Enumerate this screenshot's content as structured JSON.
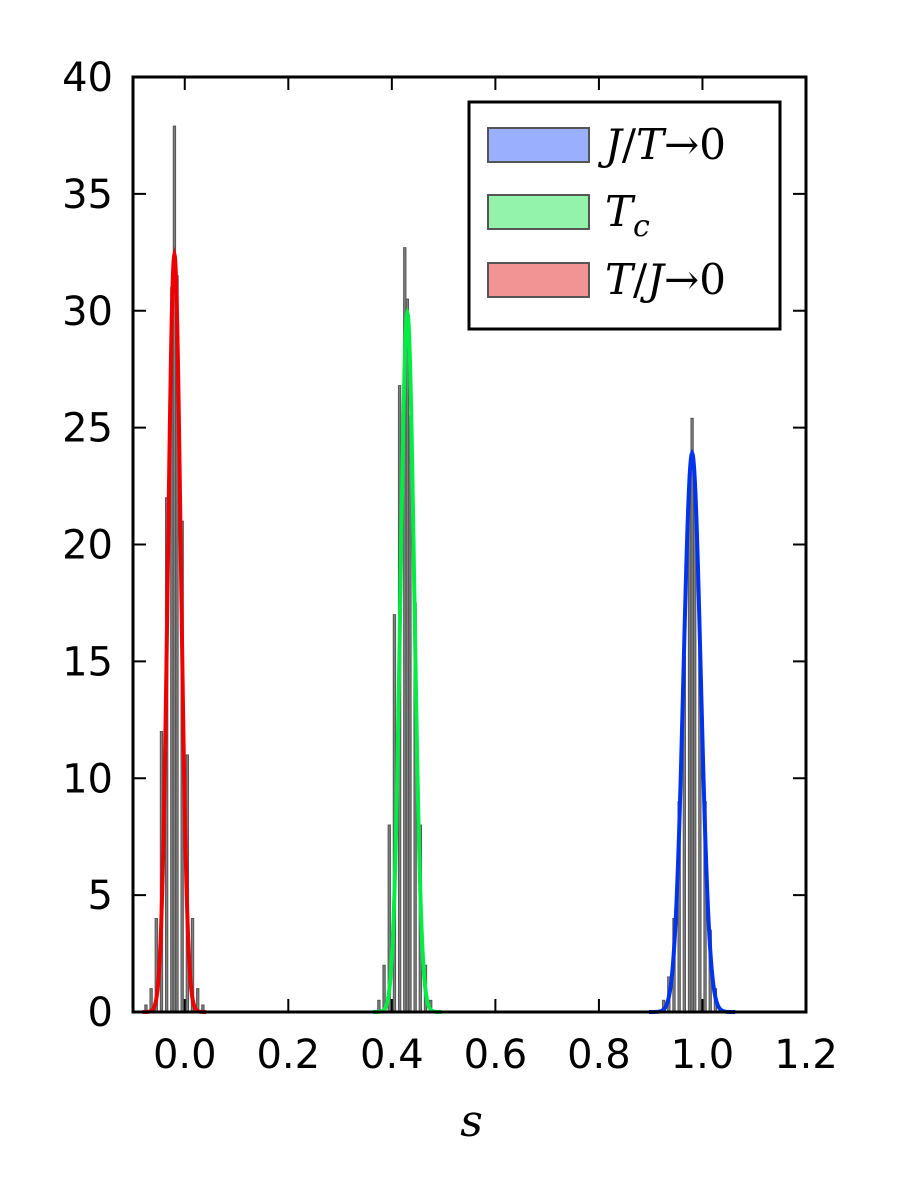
{
  "chart_data": {
    "type": "histogram",
    "xlabel": "s",
    "ylabel": "",
    "title": "",
    "xlim": [
      -0.1,
      1.2
    ],
    "ylim": [
      0,
      40
    ],
    "xticks": [
      "0.0",
      "0.2",
      "0.4",
      "0.6",
      "0.8",
      "1.0",
      "1.2"
    ],
    "xtick_values": [
      0.0,
      0.2,
      0.4,
      0.6,
      0.8,
      1.0,
      1.2
    ],
    "yticks": [
      "0",
      "5",
      "10",
      "15",
      "20",
      "25",
      "30",
      "35",
      "40"
    ],
    "ytick_values": [
      0,
      5,
      10,
      15,
      20,
      25,
      30,
      35,
      40
    ],
    "grid": false,
    "legend_position": "top-right",
    "series": [
      {
        "name": "J/T→0",
        "legend_parts": [
          "J",
          "/",
          "T",
          "→",
          "0"
        ],
        "fill_color": "#6f8fff",
        "line_color": "#0033ee",
        "fit_peak": 23.9,
        "fit_center": 0.98,
        "fit_sigma": 0.0167,
        "bins": [
          [
            0.925,
            0.5
          ],
          [
            0.935,
            1.5
          ],
          [
            0.945,
            4.0
          ],
          [
            0.955,
            9.0
          ],
          [
            0.965,
            16.0
          ],
          [
            0.975,
            23.0
          ],
          [
            0.98,
            25.4
          ],
          [
            0.985,
            22.0
          ],
          [
            0.995,
            15.5
          ],
          [
            1.005,
            9.0
          ],
          [
            1.015,
            3.5
          ],
          [
            1.025,
            1.0
          ]
        ]
      },
      {
        "name": "T_c",
        "legend_parts": [
          "T",
          "c"
        ],
        "fill_color": "#66ee88",
        "line_color": "#00ee44",
        "fit_peak": 29.9,
        "fit_center": 0.43,
        "fit_sigma": 0.0133,
        "bins": [
          [
            0.375,
            0.5
          ],
          [
            0.385,
            2.0
          ],
          [
            0.395,
            8.0
          ],
          [
            0.405,
            17.0
          ],
          [
            0.415,
            26.8
          ],
          [
            0.425,
            32.7
          ],
          [
            0.43,
            30.5
          ],
          [
            0.435,
            25.5
          ],
          [
            0.445,
            17.5
          ],
          [
            0.455,
            8.0
          ],
          [
            0.465,
            2.0
          ],
          [
            0.475,
            0.5
          ]
        ]
      },
      {
        "name": "T/J→0",
        "legend_parts": [
          "T",
          "/",
          "J",
          "→",
          "0"
        ],
        "fill_color": "#ee6666",
        "line_color": "#ee0000",
        "fit_peak": 32.4,
        "fit_center": -0.02,
        "fit_sigma": 0.0123,
        "bins": [
          [
            -0.075,
            0.3
          ],
          [
            -0.065,
            1.0
          ],
          [
            -0.055,
            4.0
          ],
          [
            -0.045,
            12.0
          ],
          [
            -0.035,
            22.0
          ],
          [
            -0.025,
            31.0
          ],
          [
            -0.02,
            37.9
          ],
          [
            -0.015,
            31.5
          ],
          [
            -0.005,
            21.0
          ],
          [
            0.005,
            11.0
          ],
          [
            0.015,
            4.0
          ],
          [
            0.025,
            1.0
          ],
          [
            0.035,
            0.3
          ]
        ]
      }
    ]
  }
}
